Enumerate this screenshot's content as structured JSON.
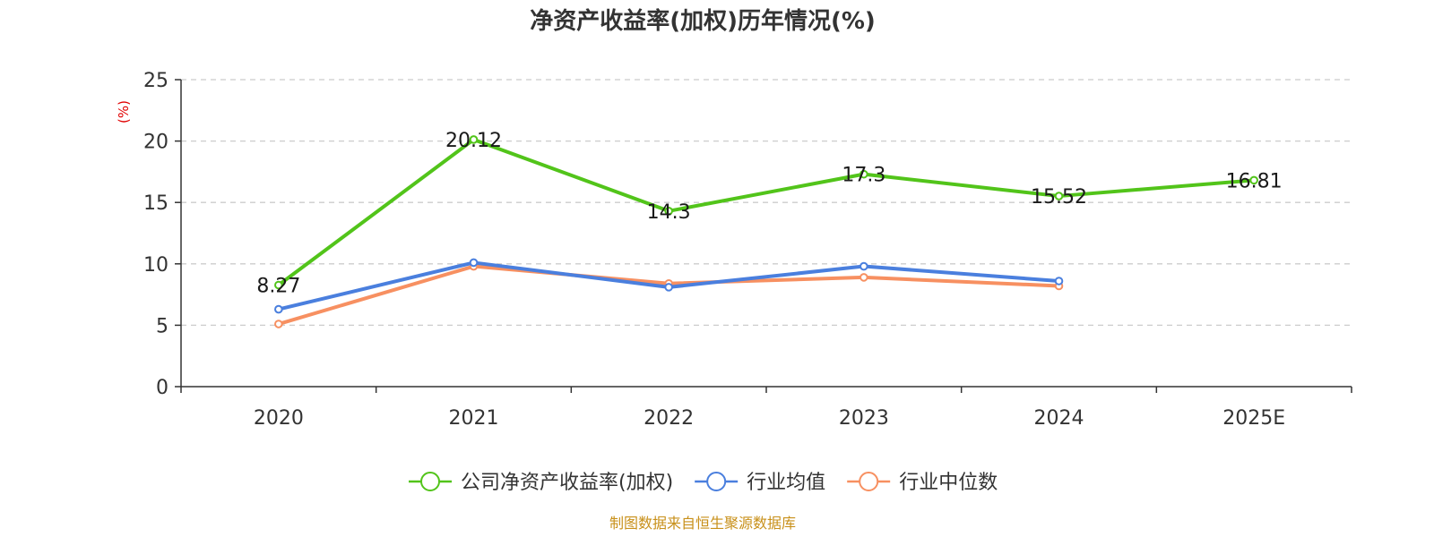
{
  "chart_data": {
    "type": "line",
    "title": "净资产收益率(加权)历年情况(%)",
    "ylabel": "(%)",
    "categories": [
      "2020",
      "2021",
      "2022",
      "2023",
      "2024",
      "2025E"
    ],
    "ylim": [
      0,
      25
    ],
    "yticks": [
      "0",
      "5",
      "10",
      "15",
      "20",
      "25"
    ],
    "grid": true,
    "legend_position": "bottom",
    "series": [
      {
        "name": "公司净资产收益率(加权)",
        "color": "#52c41a",
        "values": [
          8.27,
          20.12,
          14.3,
          17.3,
          15.52,
          16.81
        ],
        "labels": [
          "8.27",
          "20.12",
          "14.3",
          "17.3",
          "15.52",
          "16.81"
        ]
      },
      {
        "name": "行业均值",
        "color": "#4a7fde",
        "values": [
          6.3,
          10.1,
          8.1,
          9.8,
          8.6,
          null
        ]
      },
      {
        "name": "行业中位数",
        "color": "#f79061",
        "values": [
          5.1,
          9.8,
          8.4,
          8.9,
          8.2,
          null
        ]
      }
    ]
  },
  "colors": {
    "unit": "#e00000",
    "source": "#c8901a",
    "axis": "#333333",
    "grid": "#cccccc"
  },
  "source": "制图数据来自恒生聚源数据库"
}
